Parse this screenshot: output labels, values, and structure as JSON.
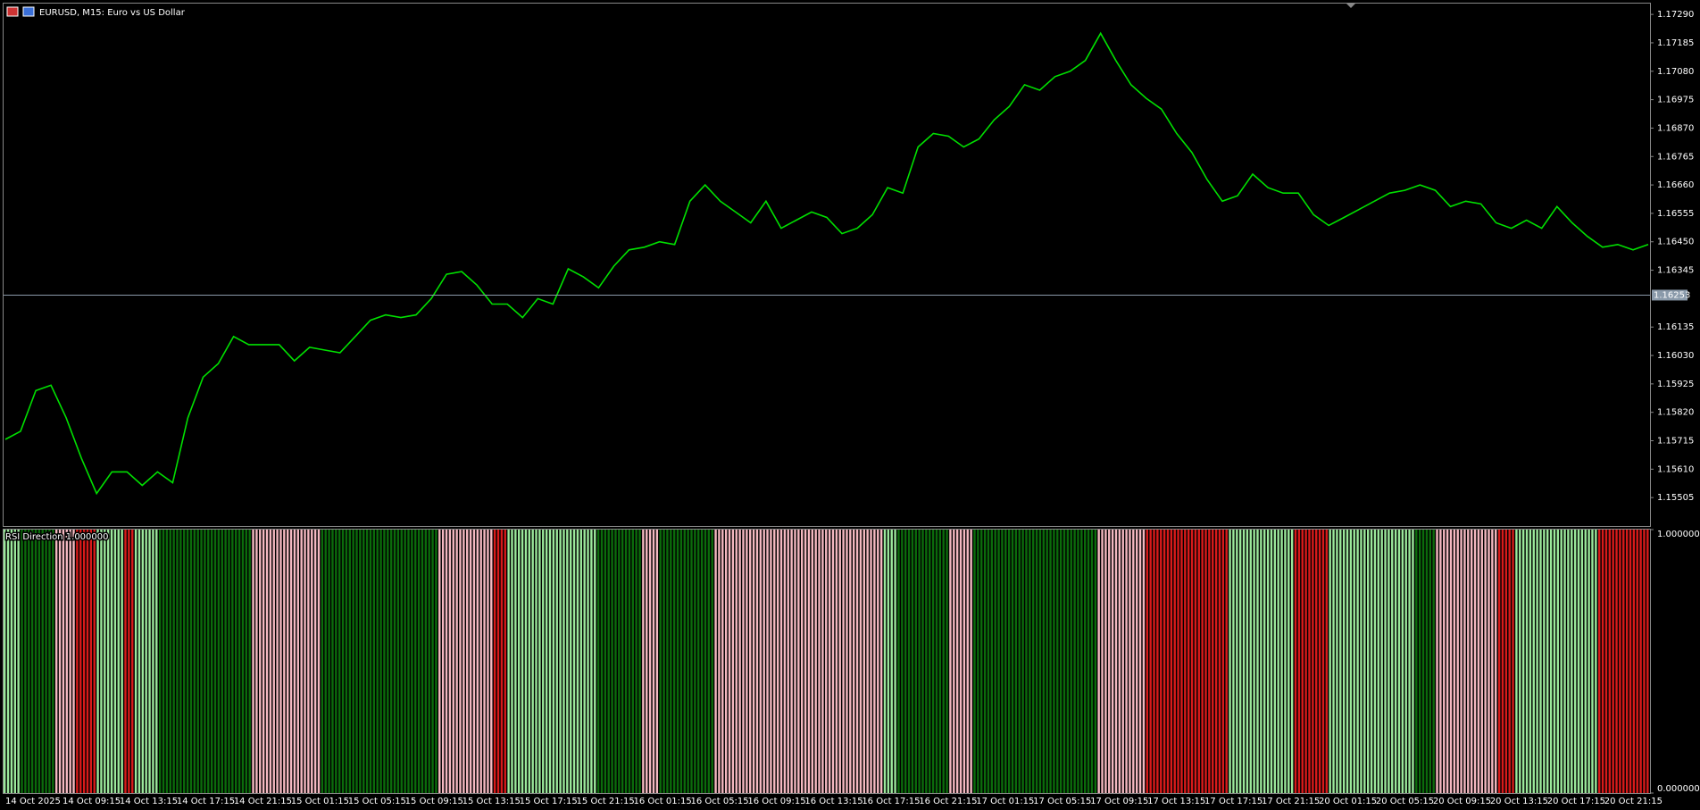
{
  "chart_data": [
    {
      "type": "line",
      "title": "EURUSD, M15:  Euro vs US Dollar",
      "color": "#00e000",
      "values": [
        1.1572,
        1.1575,
        1.159,
        1.1592,
        1.158,
        1.1565,
        1.1552,
        1.156,
        1.156,
        1.1555,
        1.156,
        1.1556,
        1.158,
        1.1595,
        1.16,
        1.161,
        1.1607,
        1.1607,
        1.1607,
        1.1601,
        1.1606,
        1.1605,
        1.1604,
        1.161,
        1.1616,
        1.1618,
        1.1617,
        1.1618,
        1.1624,
        1.1633,
        1.1634,
        1.1629,
        1.1622,
        1.1622,
        1.1617,
        1.1624,
        1.1622,
        1.1635,
        1.1632,
        1.1628,
        1.1636,
        1.1642,
        1.1643,
        1.1645,
        1.1644,
        1.166,
        1.1666,
        1.166,
        1.1656,
        1.1652,
        1.166,
        1.165,
        1.1653,
        1.1656,
        1.1654,
        1.1648,
        1.165,
        1.1655,
        1.1665,
        1.1663,
        1.168,
        1.1685,
        1.1684,
        1.168,
        1.1683,
        1.169,
        1.1695,
        1.1703,
        1.1701,
        1.1706,
        1.1708,
        1.1712,
        1.1722,
        1.1712,
        1.1703,
        1.1698,
        1.1694,
        1.1685,
        1.1678,
        1.1668,
        1.166,
        1.1662,
        1.167,
        1.1665,
        1.1663,
        1.1663,
        1.1655,
        1.1651,
        1.1654,
        1.1657,
        1.166,
        1.1663,
        1.1664,
        1.1666,
        1.1664,
        1.1658,
        1.166,
        1.1659,
        1.1652,
        1.165,
        1.1653,
        1.165,
        1.1658,
        1.1652,
        1.1647,
        1.1643,
        1.1644,
        1.1642,
        1.1644
      ],
      "current_price": 1.16253,
      "ylim": [
        1.154,
        1.1733
      ],
      "yticks": [
        {
          "value": 1.1729,
          "label": "1.17290"
        },
        1.17185,
        {
          "value": 1.1708,
          "label": "1.17080"
        },
        1.16975,
        {
          "value": 1.1687,
          "label": "1.16870"
        },
        1.16765,
        {
          "value": 1.1666,
          "label": "1.16660"
        },
        1.16555,
        {
          "value": 1.1645,
          "label": "1.16450"
        },
        1.16345,
        1.16135,
        {
          "value": 1.1603,
          "label": "1.16030"
        },
        1.15925,
        {
          "value": 1.1582,
          "label": "1.15820"
        },
        1.15715,
        {
          "value": 1.1561,
          "label": "1.15610"
        },
        1.15505
      ]
    },
    {
      "type": "bar",
      "title": "RSI Direction 1.000000",
      "ylim": [
        0,
        1
      ],
      "yticks": [
        {
          "value": 1,
          "label": "1.000000"
        },
        {
          "value": 0,
          "label": "0.000000"
        }
      ],
      "blocks": [
        {
          "color": "#9be89b",
          "bars": 5,
          "value": 1
        },
        {
          "color": "#0b6b0b",
          "bars": 10,
          "value": 1
        },
        {
          "color": "#f4b8c0",
          "bars": 6,
          "value": 1
        },
        {
          "color": "#d81a1a",
          "bars": 6,
          "value": 1
        },
        {
          "color": "#9be89b",
          "bars": 8,
          "value": 1
        },
        {
          "color": "#d81a1a",
          "bars": 3,
          "value": 1
        },
        {
          "color": "#9be89b",
          "bars": 7,
          "value": 1
        },
        {
          "color": "#0b6b0b",
          "bars": 27,
          "value": 1
        },
        {
          "color": "#f4b8c0",
          "bars": 20,
          "value": 1
        },
        {
          "color": "#0b6b0b",
          "bars": 34,
          "value": 1
        },
        {
          "color": "#f4b8c0",
          "bars": 16,
          "value": 1
        },
        {
          "color": "#d81a1a",
          "bars": 4,
          "value": 1
        },
        {
          "color": "#9be89b",
          "bars": 26,
          "value": 1
        },
        {
          "color": "#0b6b0b",
          "bars": 13,
          "value": 1
        },
        {
          "color": "#f4b8c0",
          "bars": 5,
          "value": 1
        },
        {
          "color": "#0b6b0b",
          "bars": 16,
          "value": 1
        },
        {
          "color": "#f4b8c0",
          "bars": 49,
          "value": 1
        },
        {
          "color": "#9be89b",
          "bars": 4,
          "value": 1
        },
        {
          "color": "#0b6b0b",
          "bars": 15,
          "value": 1
        },
        {
          "color": "#f4b8c0",
          "bars": 7,
          "value": 1
        },
        {
          "color": "#0b6b0b",
          "bars": 36,
          "value": 1
        },
        {
          "color": "#f4b8c0",
          "bars": 14,
          "value": 1
        },
        {
          "color": "#d81a1a",
          "bars": 24,
          "value": 1
        },
        {
          "color": "#9be89b",
          "bars": 19,
          "value": 1
        },
        {
          "color": "#d81a1a",
          "bars": 10,
          "value": 1
        },
        {
          "color": "#9be89b",
          "bars": 25,
          "value": 1
        },
        {
          "color": "#0b6b0b",
          "bars": 6,
          "value": 1
        },
        {
          "color": "#f4b8c0",
          "bars": 18,
          "value": 1
        },
        {
          "color": "#d81a1a",
          "bars": 5,
          "value": 1
        },
        {
          "color": "#9be89b",
          "bars": 24,
          "value": 1
        },
        {
          "color": "#d81a1a",
          "bars": 15,
          "value": 1
        }
      ],
      "x_labels": [
        "14 Oct 2025",
        "14 Oct 09:15",
        "14 Oct 13:15",
        "14 Oct 17:15",
        "14 Oct 21:15",
        "15 Oct 01:15",
        "15 Oct 05:15",
        "15 Oct 09:15",
        "15 Oct 13:15",
        "15 Oct 17:15",
        "15 Oct 21:15",
        "16 Oct 01:15",
        "16 Oct 05:15",
        "16 Oct 09:15",
        "16 Oct 13:15",
        "16 Oct 17:15",
        "16 Oct 21:15",
        "17 Oct 01:15",
        "17 Oct 05:15",
        "17 Oct 09:15",
        "17 Oct 13:15",
        "17 Oct 17:15",
        "17 Oct 21:15",
        "20 Oct 01:15",
        "20 Oct 05:15",
        "20 Oct 09:15",
        "20 Oct 13:15",
        "20 Oct 17:15",
        "20 Oct 21:15"
      ]
    }
  ]
}
